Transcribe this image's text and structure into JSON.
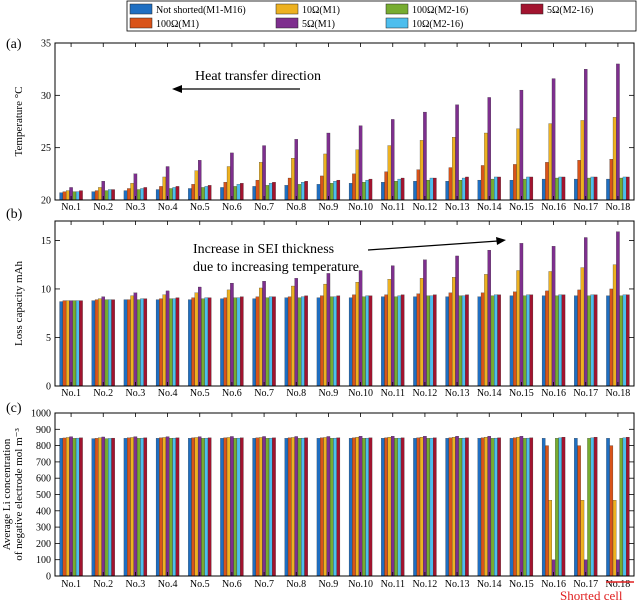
{
  "legend": [
    {
      "label": "Not shorted(M1-M16)",
      "color": "#1f6fc2"
    },
    {
      "label": "100Ω(M1)",
      "color": "#d95319"
    },
    {
      "label": "10Ω(M1)",
      "color": "#edb120"
    },
    {
      "label": "5Ω(M1)",
      "color": "#7e2f8e"
    },
    {
      "label": "100Ω(M2-16)",
      "color": "#77ac30"
    },
    {
      "label": "10Ω(M2-16)",
      "color": "#4dbeee"
    },
    {
      "label": "5Ω(M2-16)",
      "color": "#a2142f"
    }
  ],
  "shorted_label": "Shorted cell",
  "chart_data": [
    {
      "type": "bar",
      "panel": "(a)",
      "categories": [
        "No.1",
        "No.2",
        "No.3",
        "No.4",
        "No.5",
        "No.6",
        "No.7",
        "No.8",
        "No.9",
        "No.10",
        "No.11",
        "No.12",
        "No.13",
        "No.14",
        "No.15",
        "No.16",
        "No.17",
        "No.18"
      ],
      "ylabel": "Temperature °C",
      "ylim": [
        20,
        35
      ],
      "yticks": [
        20,
        25,
        30,
        35
      ],
      "annotation": "Heat transfer direction",
      "series": [
        {
          "name": "Not shorted(M1-M16)",
          "values": [
            20.7,
            20.8,
            20.9,
            21.0,
            21.1,
            21.2,
            21.3,
            21.4,
            21.5,
            21.6,
            21.7,
            21.8,
            21.8,
            21.9,
            21.9,
            22.0,
            22.0,
            22.0
          ]
        },
        {
          "name": "100Ω(M1)",
          "values": [
            20.8,
            20.9,
            21.1,
            21.3,
            21.5,
            21.7,
            21.9,
            22.1,
            22.3,
            22.5,
            22.7,
            22.9,
            23.1,
            23.3,
            23.4,
            23.6,
            23.8,
            23.9
          ]
        },
        {
          "name": "10Ω(M1)",
          "values": [
            20.9,
            21.2,
            21.6,
            22.2,
            22.8,
            23.2,
            23.6,
            24.0,
            24.4,
            24.8,
            25.2,
            25.7,
            26.0,
            26.4,
            26.8,
            27.3,
            27.6,
            27.9
          ]
        },
        {
          "name": "5Ω(M1)",
          "values": [
            21.2,
            21.8,
            22.5,
            23.2,
            23.8,
            24.5,
            25.2,
            25.8,
            26.4,
            27.1,
            27.7,
            28.4,
            29.1,
            29.8,
            30.5,
            31.6,
            32.5,
            33.0
          ]
        },
        {
          "name": "100Ω(M2-16)",
          "values": [
            20.8,
            20.9,
            21.0,
            21.1,
            21.2,
            21.3,
            21.4,
            21.5,
            21.6,
            21.7,
            21.8,
            21.9,
            21.9,
            22.0,
            22.0,
            22.1,
            22.1,
            22.1
          ]
        },
        {
          "name": "10Ω(M2-16)",
          "values": [
            20.8,
            21.0,
            21.1,
            21.2,
            21.3,
            21.5,
            21.6,
            21.7,
            21.8,
            21.9,
            22.0,
            22.1,
            22.1,
            22.2,
            22.2,
            22.2,
            22.2,
            22.2
          ]
        },
        {
          "name": "5Ω(M2-16)",
          "values": [
            20.9,
            21.0,
            21.2,
            21.3,
            21.4,
            21.6,
            21.7,
            21.8,
            21.9,
            22.0,
            22.1,
            22.1,
            22.2,
            22.2,
            22.2,
            22.2,
            22.2,
            22.2
          ]
        }
      ]
    },
    {
      "type": "bar",
      "panel": "(b)",
      "categories": [
        "No.1",
        "No.2",
        "No.3",
        "No.4",
        "No.5",
        "No.6",
        "No.7",
        "No.8",
        "No.9",
        "No.10",
        "No.11",
        "No.12",
        "No.13",
        "No.14",
        "No.15",
        "No.16",
        "No.17",
        "No.18"
      ],
      "ylabel": "Loss capacity mAh",
      "ylim": [
        0,
        17
      ],
      "yticks": [
        0,
        5,
        10,
        15
      ],
      "annotation_lines": [
        "Increase in SEI thickness",
        "due to increasing temperature"
      ],
      "series": [
        {
          "name": "Not shorted(M1-M16)",
          "values": [
            8.7,
            8.8,
            8.9,
            8.9,
            8.9,
            9.0,
            9.0,
            9.1,
            9.1,
            9.1,
            9.2,
            9.2,
            9.2,
            9.2,
            9.3,
            9.3,
            9.3,
            9.3
          ]
        },
        {
          "name": "100Ω(M1)",
          "values": [
            8.8,
            8.9,
            8.9,
            9.0,
            9.1,
            9.1,
            9.2,
            9.2,
            9.3,
            9.4,
            9.4,
            9.5,
            9.6,
            9.6,
            9.7,
            9.8,
            9.9,
            10.0
          ]
        },
        {
          "name": "10Ω(M1)",
          "values": [
            8.8,
            9.0,
            9.3,
            9.4,
            9.6,
            9.9,
            10.1,
            10.3,
            10.5,
            10.7,
            11.0,
            11.1,
            11.2,
            11.5,
            11.9,
            11.8,
            12.2,
            12.5
          ]
        },
        {
          "name": "5Ω(M1)",
          "values": [
            8.8,
            9.2,
            9.6,
            9.8,
            10.2,
            10.6,
            10.8,
            11.1,
            11.6,
            11.9,
            12.4,
            13.0,
            13.4,
            14.0,
            14.7,
            14.4,
            15.3,
            15.9
          ]
        },
        {
          "name": "100Ω(M2-16)",
          "values": [
            8.8,
            8.9,
            8.9,
            9.0,
            9.0,
            9.1,
            9.1,
            9.1,
            9.2,
            9.2,
            9.2,
            9.3,
            9.3,
            9.3,
            9.3,
            9.3,
            9.3,
            9.3
          ]
        },
        {
          "name": "10Ω(M2-16)",
          "values": [
            8.8,
            8.9,
            9.0,
            9.0,
            9.1,
            9.1,
            9.2,
            9.2,
            9.2,
            9.3,
            9.3,
            9.3,
            9.3,
            9.4,
            9.4,
            9.4,
            9.4,
            9.4
          ]
        },
        {
          "name": "5Ω(M2-16)",
          "values": [
            8.8,
            8.9,
            9.0,
            9.1,
            9.1,
            9.2,
            9.2,
            9.3,
            9.3,
            9.3,
            9.4,
            9.4,
            9.4,
            9.4,
            9.4,
            9.4,
            9.4,
            9.4
          ]
        }
      ]
    },
    {
      "type": "bar",
      "panel": "(c)",
      "categories": [
        "No.1",
        "No.2",
        "No.3",
        "No.4",
        "No.5",
        "No.6",
        "No.7",
        "No.8",
        "No.9",
        "No.10",
        "No.11",
        "No.12",
        "No.13",
        "No.14",
        "No.15",
        "No.16",
        "No.17",
        "No.18"
      ],
      "ylabel_lines": [
        "Average Li concentration",
        "of negative electrode mol m⁻³"
      ],
      "ylim": [
        0,
        1000
      ],
      "yticks": [
        0,
        100,
        200,
        300,
        400,
        500,
        600,
        700,
        800,
        900,
        1000
      ],
      "series": [
        {
          "name": "Not shorted(M1-M16)",
          "values": [
            845,
            843,
            845,
            845,
            845,
            845,
            845,
            845,
            845,
            845,
            845,
            845,
            845,
            845,
            845,
            845,
            845,
            845
          ]
        },
        {
          "name": "100Ω(M1)",
          "values": [
            847,
            845,
            848,
            848,
            848,
            848,
            848,
            848,
            848,
            848,
            848,
            848,
            848,
            848,
            848,
            800,
            800,
            800
          ]
        },
        {
          "name": "10Ω(M1)",
          "values": [
            850,
            848,
            850,
            850,
            850,
            850,
            850,
            850,
            850,
            852,
            852,
            852,
            852,
            852,
            852,
            465,
            465,
            465
          ]
        },
        {
          "name": "5Ω(M1)",
          "values": [
            855,
            853,
            855,
            855,
            855,
            856,
            856,
            856,
            856,
            858,
            858,
            858,
            858,
            858,
            858,
            100,
            100,
            100
          ]
        },
        {
          "name": "100Ω(M2-16)",
          "values": [
            845,
            843,
            845,
            845,
            845,
            845,
            845,
            845,
            845,
            845,
            845,
            845,
            845,
            845,
            845,
            845,
            845,
            845
          ]
        },
        {
          "name": "10Ω(M2-16)",
          "values": [
            846,
            844,
            846,
            846,
            846,
            846,
            846,
            846,
            846,
            846,
            846,
            846,
            846,
            846,
            846,
            848,
            848,
            848
          ]
        },
        {
          "name": "5Ω(M2-16)",
          "values": [
            848,
            846,
            848,
            848,
            848,
            848,
            848,
            848,
            848,
            848,
            848,
            848,
            848,
            848,
            848,
            852,
            852,
            852
          ]
        }
      ]
    }
  ]
}
